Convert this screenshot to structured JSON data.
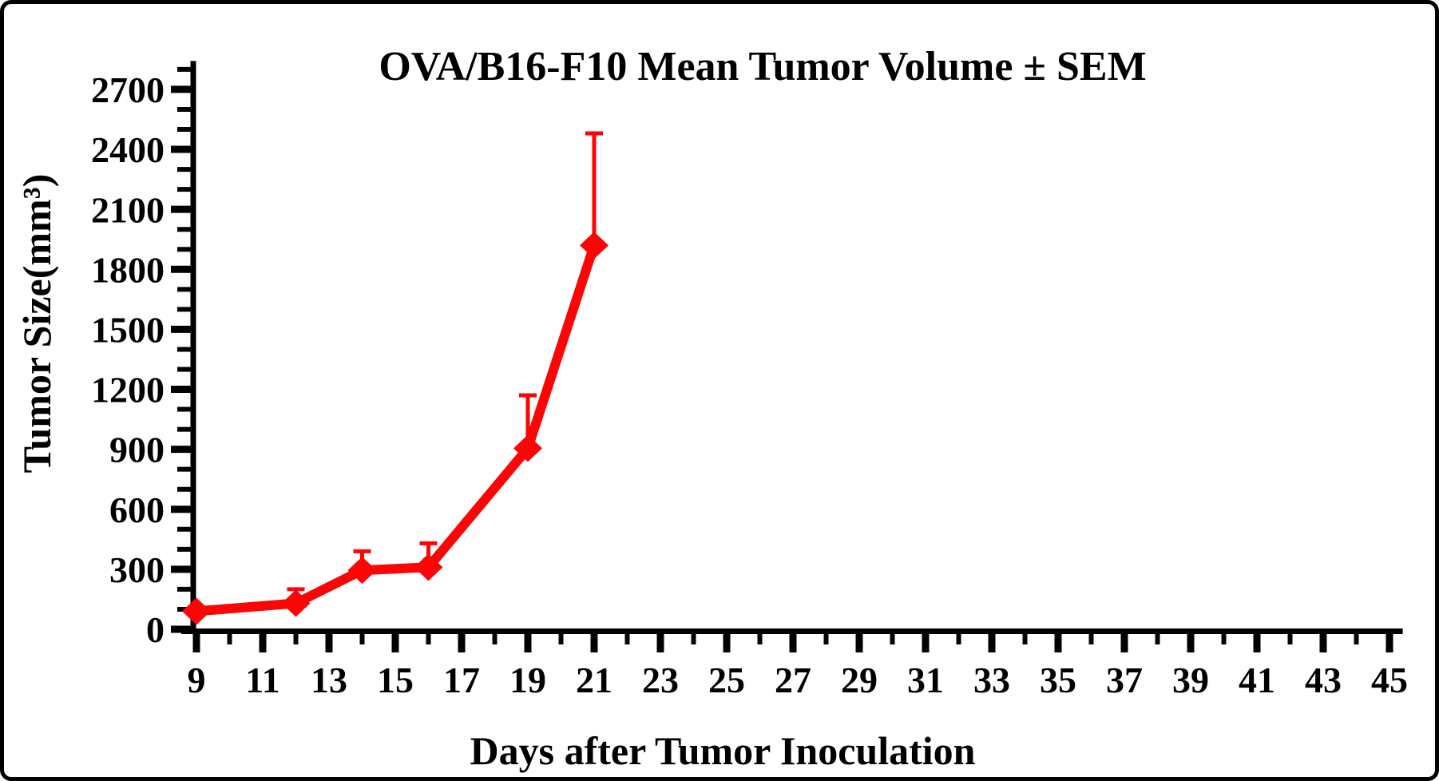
{
  "frame": {
    "background_color": "#ffffff",
    "border_color": "#000000"
  },
  "chart_data": {
    "type": "line",
    "title": "OVA/B16-F10 Mean Tumor Volume ± SEM",
    "xlabel": "Days after Tumor Inoculation",
    "ylabel": "Tumor Size(mm³)",
    "grid": false,
    "legend": "none",
    "axis_color": "#000000",
    "xlim": [
      8.5,
      45.4
    ],
    "ylim": [
      0,
      2830
    ],
    "x_ticks_major": [
      9,
      11,
      13,
      15,
      17,
      19,
      21,
      23,
      25,
      27,
      29,
      31,
      33,
      35,
      37,
      39,
      41,
      43,
      45
    ],
    "x_ticks_minor": [
      10,
      12,
      14,
      16,
      18,
      20,
      22,
      24,
      26,
      28,
      30,
      32,
      34,
      36,
      38,
      40,
      42,
      44
    ],
    "y_ticks_major": [
      0,
      300,
      600,
      900,
      1200,
      1500,
      1800,
      2100,
      2400,
      2700
    ],
    "y_minor_step": 100,
    "error_bar_style": "upper SEM only, capped",
    "series": [
      {
        "name": "OVA/B16-F10 mean tumor volume",
        "color": "#fb0505",
        "marker": "diamond",
        "x": [
          9,
          12,
          14,
          16,
          19,
          21
        ],
        "values": [
          90,
          130,
          295,
          310,
          905,
          1920
        ],
        "sem_upper_reach": [
          null,
          200,
          390,
          430,
          1170,
          2480
        ]
      }
    ]
  }
}
